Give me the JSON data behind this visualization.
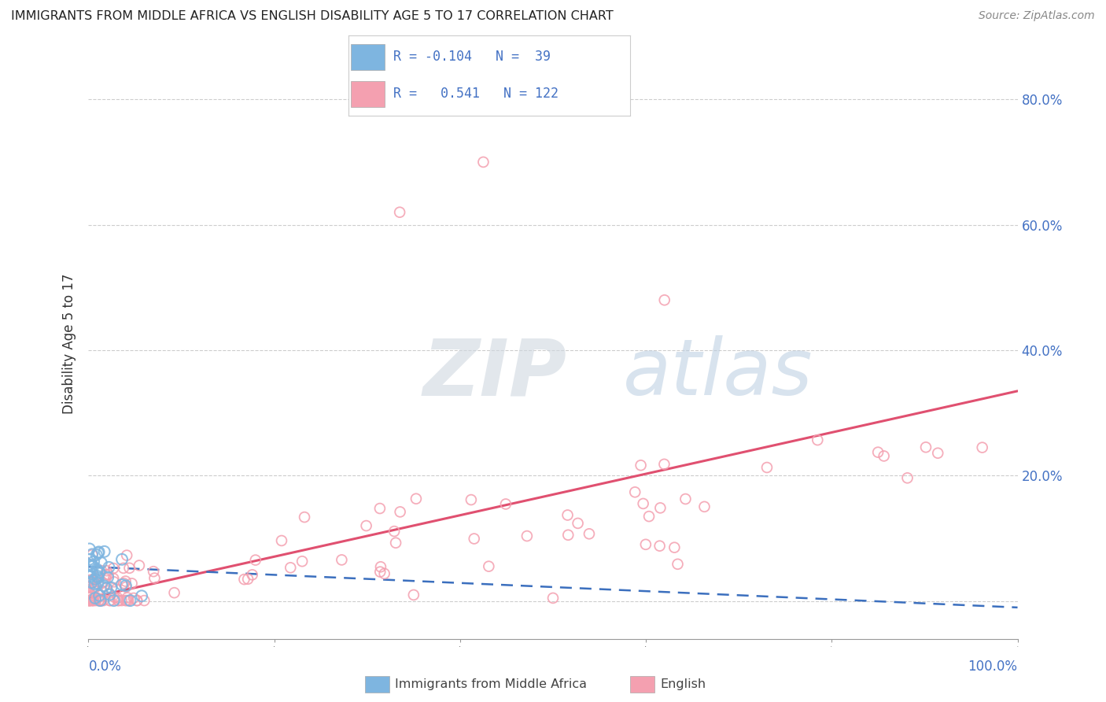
{
  "title": "IMMIGRANTS FROM MIDDLE AFRICA VS ENGLISH DISABILITY AGE 5 TO 17 CORRELATION CHART",
  "source": "Source: ZipAtlas.com",
  "ylabel": "Disability Age 5 to 17",
  "legend_blue_R": -0.104,
  "legend_blue_N": 39,
  "legend_pink_R": 0.541,
  "legend_pink_N": 122,
  "blue_color": "#7EB5E0",
  "pink_color": "#F4A0B0",
  "blue_line_color": "#3B6FBE",
  "pink_line_color": "#E05070",
  "watermark": "ZIPatlas",
  "xlim": [
    0.0,
    1.0
  ],
  "ylim": [
    -0.06,
    0.88
  ],
  "yticks": [
    0.0,
    0.2,
    0.4,
    0.6,
    0.8
  ],
  "yticklabels_right": [
    "",
    "20.0%",
    "40.0%",
    "60.0%",
    "80.0%"
  ],
  "pink_line_x0": 0.0,
  "pink_line_y0": 0.005,
  "pink_line_x1": 1.0,
  "pink_line_y1": 0.335,
  "blue_line_x0": 0.0,
  "blue_line_y0": 0.055,
  "blue_line_x1": 1.0,
  "blue_line_y1": -0.01
}
